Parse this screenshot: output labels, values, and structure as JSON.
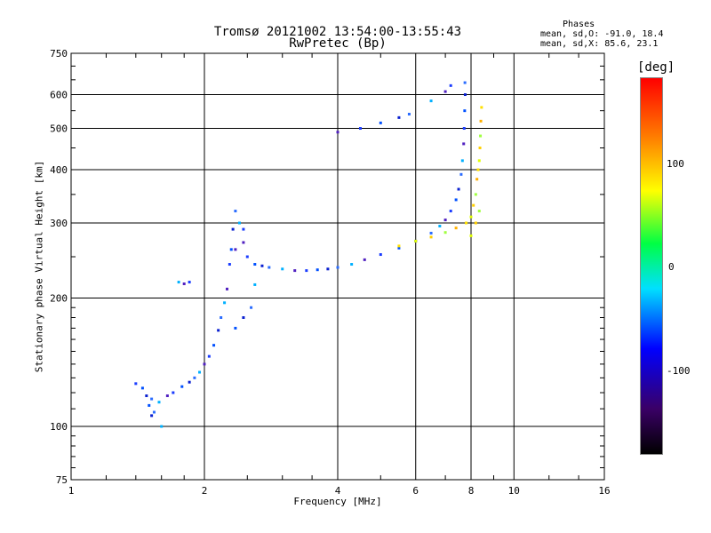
{
  "title": "Tromsø 20121002 13:54:00-13:55:43",
  "subtitle": "RwPretec (Bp)",
  "phase_box": {
    "heading": "Phases",
    "line1": "mean, sd,O: -91.0, 18.4",
    "line2": "mean, sd,X:  85.6, 23.1"
  },
  "colorbar": {
    "unit": "[deg]",
    "ticks": [
      {
        "label": "100",
        "value": 100
      },
      {
        "label": "0",
        "value": 0
      },
      {
        "label": "-100",
        "value": -100
      }
    ],
    "range": [
      -180,
      180
    ]
  },
  "chart_data": {
    "type": "scatter",
    "xlabel": "Frequency [MHz]",
    "ylabel": "Stationary phase Virtual Height [km]",
    "x_scale": "log",
    "y_scale": "log",
    "xlim": [
      1,
      16
    ],
    "ylim": [
      75,
      750
    ],
    "x_ticks": [
      1,
      2,
      4,
      6,
      8,
      10,
      16
    ],
    "y_ticks": [
      75,
      100,
      200,
      300,
      400,
      500,
      600,
      750
    ],
    "grid": true,
    "series": [
      {
        "name": "O",
        "color_hint": "blue",
        "points": [
          [
            1.4,
            126
          ],
          [
            1.45,
            123
          ],
          [
            1.48,
            118
          ],
          [
            1.52,
            116
          ],
          [
            1.58,
            114
          ],
          [
            1.65,
            118
          ],
          [
            1.7,
            120
          ],
          [
            1.78,
            124
          ],
          [
            1.85,
            127
          ],
          [
            1.9,
            130
          ],
          [
            1.95,
            134
          ],
          [
            2.0,
            140
          ],
          [
            2.05,
            146
          ],
          [
            2.1,
            155
          ],
          [
            2.15,
            168
          ],
          [
            2.18,
            180
          ],
          [
            2.22,
            195
          ],
          [
            2.25,
            210
          ],
          [
            2.28,
            240
          ],
          [
            2.3,
            260
          ],
          [
            2.32,
            290
          ],
          [
            2.35,
            320
          ],
          [
            2.4,
            300
          ],
          [
            2.45,
            270
          ],
          [
            2.5,
            250
          ],
          [
            2.6,
            240
          ],
          [
            2.7,
            238
          ],
          [
            2.8,
            236
          ],
          [
            3.0,
            234
          ],
          [
            3.2,
            232
          ],
          [
            3.4,
            232
          ],
          [
            3.6,
            233
          ],
          [
            3.8,
            234
          ],
          [
            4.0,
            236
          ],
          [
            4.3,
            240
          ],
          [
            4.6,
            246
          ],
          [
            5.0,
            253
          ],
          [
            5.5,
            262
          ],
          [
            6.0,
            272
          ],
          [
            6.5,
            284
          ],
          [
            6.8,
            295
          ],
          [
            7.0,
            305
          ],
          [
            7.2,
            320
          ],
          [
            7.4,
            340
          ],
          [
            7.5,
            360
          ],
          [
            7.6,
            390
          ],
          [
            7.65,
            420
          ],
          [
            7.7,
            460
          ],
          [
            7.72,
            500
          ],
          [
            7.74,
            550
          ],
          [
            7.76,
            600
          ],
          [
            7.75,
            640
          ],
          [
            1.75,
            218
          ],
          [
            1.8,
            216
          ],
          [
            1.85,
            218
          ],
          [
            1.5,
            112
          ],
          [
            1.52,
            106
          ],
          [
            1.54,
            108
          ],
          [
            1.6,
            100
          ],
          [
            4.0,
            490
          ],
          [
            4.5,
            500
          ],
          [
            5.0,
            515
          ],
          [
            5.5,
            530
          ],
          [
            5.8,
            540
          ],
          [
            6.5,
            580
          ],
          [
            7.0,
            610
          ],
          [
            7.2,
            630
          ],
          [
            2.35,
            170
          ],
          [
            2.45,
            180
          ],
          [
            2.55,
            190
          ],
          [
            2.6,
            215
          ],
          [
            2.35,
            260
          ],
          [
            2.45,
            290
          ]
        ]
      },
      {
        "name": "X",
        "color_hint": "yellow",
        "points": [
          [
            5.5,
            265
          ],
          [
            6.0,
            272
          ],
          [
            6.5,
            278
          ],
          [
            7.0,
            285
          ],
          [
            7.4,
            292
          ],
          [
            7.8,
            300
          ],
          [
            8.0,
            310
          ],
          [
            8.1,
            330
          ],
          [
            8.2,
            350
          ],
          [
            8.25,
            380
          ],
          [
            8.3,
            400
          ],
          [
            8.35,
            420
          ],
          [
            8.38,
            450
          ],
          [
            8.4,
            480
          ],
          [
            8.42,
            520
          ],
          [
            8.45,
            560
          ],
          [
            8.0,
            280
          ],
          [
            8.2,
            300
          ],
          [
            8.35,
            320
          ]
        ]
      }
    ]
  }
}
